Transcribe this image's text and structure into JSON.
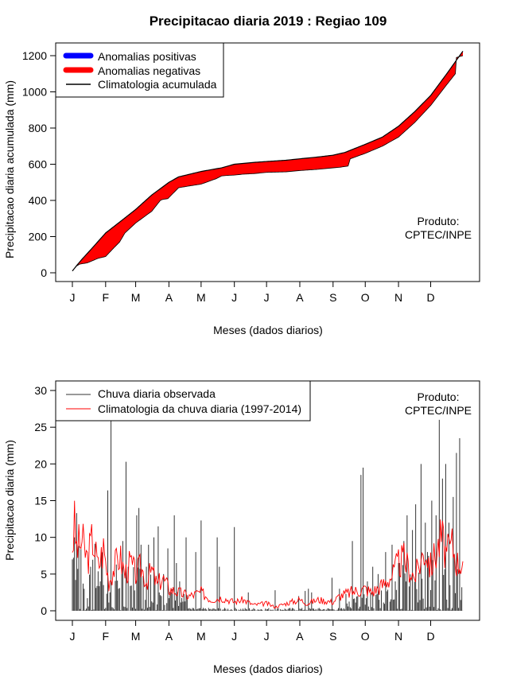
{
  "chart_data": [
    {
      "type": "area",
      "title": "Precipitacao diaria 2019 : Regiao 109",
      "xlabel": "Meses (dados diarios)",
      "ylabel": "Precipitacao diaria acumulada (mm)",
      "ylim": [
        0,
        1250
      ],
      "yticks": [
        0,
        200,
        400,
        600,
        800,
        1000,
        1200
      ],
      "month_ticks": [
        "J",
        "F",
        "M",
        "A",
        "M",
        "J",
        "J",
        "A",
        "S",
        "O",
        "N",
        "D"
      ],
      "month_start_days": [
        1,
        32,
        60,
        91,
        121,
        152,
        182,
        213,
        244,
        274,
        305,
        335
      ],
      "colors": {
        "positive": "#0000ff",
        "negative": "#ff0000",
        "line": "#000000"
      },
      "legend": {
        "position": "top-left",
        "entries": [
          "Anomalias positivas",
          "Anomalias negativas",
          "Climatologia acumulada"
        ]
      },
      "credit": [
        "Produto:",
        "CPTEC/INPE"
      ],
      "climatology_cumulative": {
        "days": [
          1,
          5,
          10,
          20,
          32,
          45,
          60,
          75,
          91,
          100,
          121,
          140,
          152,
          170,
          182,
          200,
          213,
          230,
          244,
          255,
          274,
          290,
          305,
          320,
          335,
          350,
          365
        ],
        "values": [
          10,
          40,
          75,
          140,
          220,
          280,
          350,
          430,
          500,
          530,
          560,
          580,
          600,
          610,
          615,
          622,
          630,
          640,
          650,
          665,
          710,
          750,
          810,
          890,
          980,
          1100,
          1225
        ]
      },
      "observed_cumulative": {
        "days": [
          1,
          5,
          8,
          15,
          25,
          32,
          40,
          45,
          50,
          60,
          75,
          83,
          85,
          90,
          100,
          110,
          121,
          135,
          140,
          145,
          152,
          160,
          170,
          182,
          200,
          213,
          230,
          244,
          250,
          258,
          260,
          274,
          290,
          305,
          320,
          335,
          350,
          358,
          359,
          365
        ],
        "values": [
          10,
          38,
          48,
          55,
          80,
          90,
          140,
          170,
          220,
          275,
          340,
          400,
          405,
          410,
          470,
          480,
          490,
          520,
          535,
          538,
          540,
          545,
          548,
          555,
          558,
          565,
          572,
          580,
          583,
          590,
          630,
          660,
          700,
          750,
          830,
          925,
          1040,
          1100,
          1190,
          1200
        ]
      }
    },
    {
      "type": "line",
      "xlabel": "Meses (dados diarios)",
      "ylabel": "Precipitacao diaria (mm)",
      "ylim": [
        0,
        31
      ],
      "yticks": [
        0,
        5,
        10,
        15,
        20,
        25,
        30
      ],
      "month_ticks": [
        "J",
        "F",
        "M",
        "A",
        "M",
        "J",
        "J",
        "A",
        "S",
        "O",
        "N",
        "D"
      ],
      "month_start_days": [
        1,
        32,
        60,
        91,
        121,
        152,
        182,
        213,
        244,
        274,
        305,
        335
      ],
      "colors": {
        "observed": "#333333",
        "climatology": "#ff0000"
      },
      "legend": {
        "position": "top-left",
        "entries": [
          "Chuva diaria observada",
          "Climatologia da chuva diaria (1997-2014)"
        ]
      },
      "credit": [
        "Produto:",
        "CPTEC/INPE"
      ],
      "observed_peaks": {
        "days": [
          1,
          3,
          5,
          12,
          18,
          27,
          34,
          37,
          38,
          44,
          48,
          51,
          53,
          61,
          63,
          65,
          70,
          72,
          77,
          81,
          86,
          90,
          96,
          98,
          101,
          107,
          116,
          121,
          136,
          138,
          152,
          165,
          190,
          212,
          218,
          221,
          224,
          243,
          250,
          262,
          270,
          272,
          276,
          281,
          286,
          293,
          299,
          302,
          306,
          310,
          313,
          318,
          321,
          326,
          330,
          332,
          336,
          340,
          343,
          346,
          349,
          352,
          356,
          359,
          362
        ],
        "values": [
          7,
          10,
          13.3,
          3,
          6,
          4,
          16.4,
          26,
          0.5,
          3,
          9.5,
          20.3,
          6,
          13,
          14,
          9,
          6,
          9,
          10,
          11.5,
          5,
          8.5,
          13,
          6.5,
          4,
          10,
          8,
          12.3,
          10,
          6,
          11.4,
          2.5,
          2.8,
          2,
          2.7,
          3,
          2.5,
          4.5,
          3,
          9.5,
          18.5,
          19.5,
          4,
          6,
          5,
          8,
          9,
          4,
          6.5,
          9.5,
          13,
          11,
          14.5,
          20,
          12,
          8,
          15,
          13,
          26,
          18,
          20,
          12,
          15.5,
          21.5,
          23.5
        ]
      },
      "climatology_daily": {
        "days": [
          1,
          3,
          5,
          10,
          15,
          20,
          25,
          30,
          35,
          40,
          45,
          50,
          55,
          60,
          65,
          70,
          75,
          80,
          85,
          91,
          100,
          110,
          121,
          130,
          140,
          152,
          160,
          170,
          182,
          190,
          200,
          213,
          220,
          230,
          244,
          250,
          260,
          274,
          280,
          290,
          300,
          305,
          310,
          320,
          330,
          335,
          340,
          345,
          350,
          355,
          360,
          365
        ],
        "values": [
          9,
          11.5,
          8.5,
          9.5,
          7,
          10,
          6,
          8.5,
          4,
          6,
          7.5,
          5,
          6.5,
          5,
          6,
          4,
          5.5,
          3.5,
          4.5,
          3,
          2.5,
          2,
          2.5,
          1.5,
          1.8,
          1.2,
          1.5,
          0.8,
          1,
          0.5,
          1,
          1.5,
          1,
          1.5,
          1.2,
          2,
          2.5,
          3,
          2.5,
          3.5,
          5,
          6.5,
          7,
          4.5,
          8.5,
          6,
          8,
          10,
          7.5,
          9,
          6.5,
          7
        ]
      }
    }
  ]
}
